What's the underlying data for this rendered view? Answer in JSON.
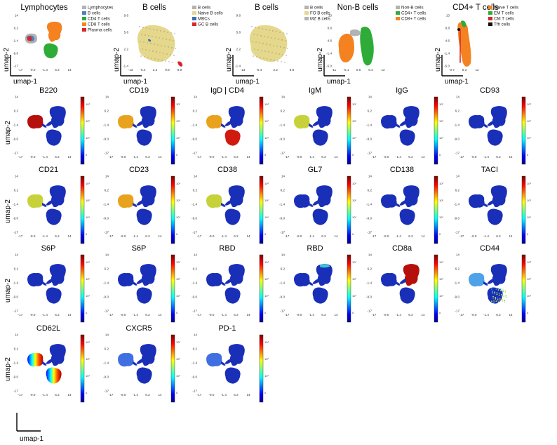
{
  "axes": {
    "xlabel": "umap-1",
    "ylabel": "umap-2"
  },
  "colors": {
    "lymph": {
      "Lymphocytes": "#b3b3b3",
      "B cells": "#4d7fbf",
      "CD4 T cells": "#2eac37",
      "CD8 T cells": "#f58220",
      "Plasma cells": "#d7262a"
    },
    "bcell1": {
      "B cells": "#b3b3b3",
      "Naive B cells": "#e6d88a",
      "MBCs": "#3a6fb7",
      "GC B cells": "#d7262a"
    },
    "bcell2": {
      "B cells": "#b3b3b3",
      "FO B cells": "#e6d88a",
      "MZ B cells": "#b3b3b3"
    },
    "nonb": {
      "Non-B cells": "#b3b3b3",
      "CD4+ T cells": "#2eac37",
      "CD8+ T cells": "#f58220"
    },
    "cd4": {
      "Naive T cells": "#f58220",
      "EM T cells": "#2eac37",
      "CM T cells": "#d7262a",
      "Tfh cells": "#111111"
    }
  },
  "chart_data": [
    {
      "type": "scatter",
      "title": "Lymphocytes",
      "x_ticks": [
        "-17",
        "-9.0",
        "-1.4",
        "6.2",
        "14"
      ],
      "y_ticks": [
        "14",
        "6.2",
        "-1.4",
        "-9.0",
        "-17"
      ],
      "legend": [
        "Lymphocytes",
        "B cells",
        "CD4 T cells",
        "CD8 T cells",
        "Plasma cells"
      ],
      "legend_position": "right"
    },
    {
      "type": "scatter",
      "title": "B cells",
      "x_ticks": [
        "-13",
        "-5.4",
        "2.2",
        "9.8",
        "9.9"
      ],
      "y_ticks": [
        "9.6",
        "5.8",
        "2.2",
        "-1.4"
      ],
      "legend": [
        "B cells",
        "Naive B cells",
        "MBCs",
        "GC B cells"
      ],
      "legend_position": "right"
    },
    {
      "type": "scatter",
      "title": "B cells",
      "x_ticks": [
        "-13",
        "-5.4",
        "2.2",
        "9.8"
      ],
      "y_ticks": [
        "9.6",
        "5.8",
        "2.2",
        "-1.4"
      ],
      "legend": [
        "B cells",
        "FO B cells",
        "MZ B cells"
      ],
      "legend_position": "right"
    },
    {
      "type": "scatter",
      "title": "Non-B cells",
      "x_ticks": [
        "-11",
        "-5.1",
        "0.6",
        "6.4",
        "12"
      ],
      "y_ticks": [
        "13",
        "8.8",
        "4.6",
        "-1.4",
        "-5.0"
      ],
      "legend": [
        "Non-B cells",
        "CD4+ T cells",
        "CD8+ T cells"
      ],
      "legend_position": "right"
    },
    {
      "type": "scatter",
      "title": "CD4+ T cells",
      "x_ticks": [
        "-0.7",
        "6.3",
        "12"
      ],
      "y_ticks": [
        "13",
        "8.8",
        "4.6",
        "-1.4",
        "-5.0"
      ],
      "legend": [
        "Naive T cells",
        "EM T cells",
        "CM T cells",
        "Tfh cells"
      ],
      "legend_position": "right"
    },
    {
      "type": "heatmap",
      "panels": [
        {
          "title": "B220",
          "hot": "B",
          "level": 1.0
        },
        {
          "title": "CD19",
          "hot": "B",
          "level": 0.8
        },
        {
          "title": "IgD | CD4",
          "hot": "B+CD4",
          "level": 0.8
        },
        {
          "title": "IgM",
          "hot": "B",
          "level": 0.6
        },
        {
          "title": "IgG",
          "hot": "none",
          "level": 0.0
        },
        {
          "title": "CD93",
          "hot": "none",
          "level": 0.0
        },
        {
          "title": "CD21",
          "hot": "B",
          "level": 0.7
        },
        {
          "title": "CD23",
          "hot": "B",
          "level": 0.75
        },
        {
          "title": "CD38",
          "hot": "B",
          "level": 0.6
        },
        {
          "title": "GL7",
          "hot": "none",
          "level": 0.0
        },
        {
          "title": "CD138",
          "hot": "none",
          "level": 0.0
        },
        {
          "title": "TACI",
          "hot": "none",
          "level": 0.0
        },
        {
          "title": "S6P",
          "hot": "none",
          "level": 0.0
        },
        {
          "title": "S6P",
          "hot": "none",
          "level": 0.0
        },
        {
          "title": "RBD",
          "hot": "none",
          "level": 0.0
        },
        {
          "title": "RBD",
          "hot": "topright",
          "level": 0.3
        },
        {
          "title": "CD8a",
          "hot": "CD8",
          "level": 1.0
        },
        {
          "title": "CD44",
          "hot": "mixed",
          "level": 0.4
        },
        {
          "title": "CD62L",
          "hot": "gradient",
          "level": 0.9
        },
        {
          "title": "CXCR5",
          "hot": "B-low",
          "level": 0.25
        },
        {
          "title": "PD-1",
          "hot": "B-low",
          "level": 0.2
        }
      ],
      "x_ticks": [
        "-17",
        "-9.0",
        "-1.4",
        "6.2",
        "14"
      ],
      "y_ticks": [
        "14",
        "6.2",
        "-1.4",
        "-9.0",
        "-17"
      ],
      "colorbar_ticks": [
        "10³",
        "10²",
        "10¹",
        "0"
      ]
    }
  ]
}
